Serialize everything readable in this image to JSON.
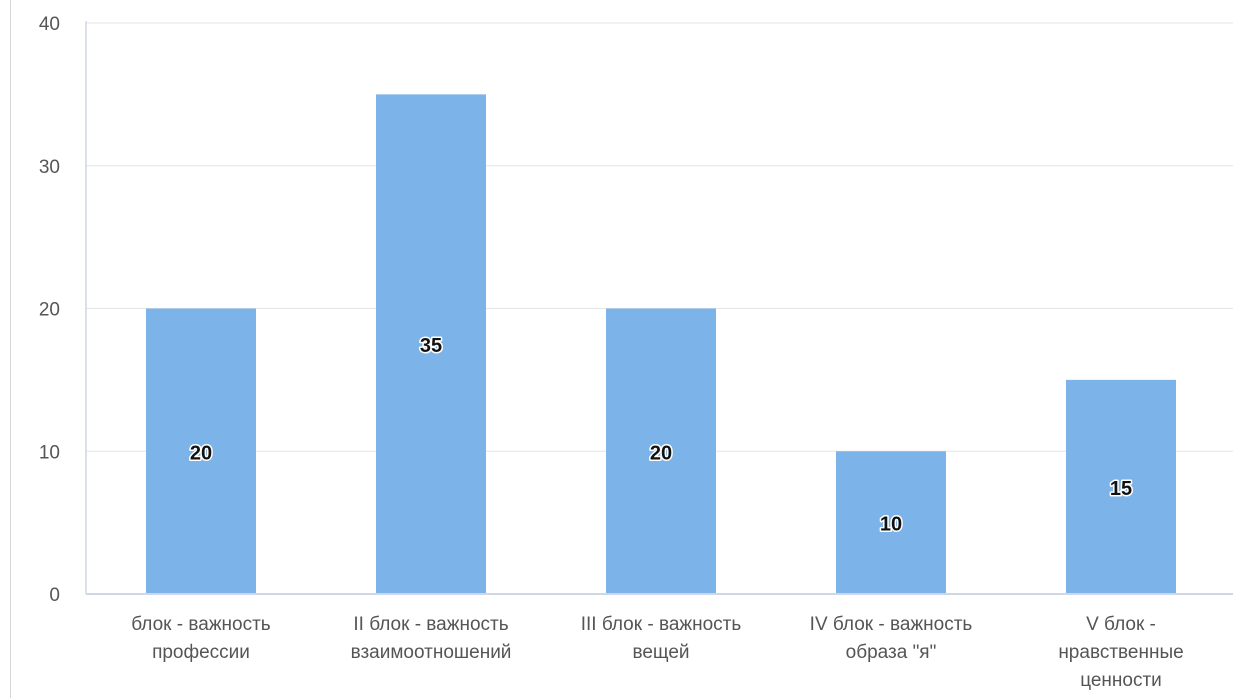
{
  "chart_data": {
    "type": "bar",
    "categories": [
      "блок - важность профессии",
      "II блок - важность взаимоотношений",
      "III блок - важность вещей",
      "IV блок - важность образа \"я\"",
      "V блок - нравственные ценности"
    ],
    "category_lines": [
      [
        "блок - важность",
        "профессии"
      ],
      [
        "II блок - важность",
        "взаимоотношений"
      ],
      [
        "III блок - важность",
        "вещей"
      ],
      [
        "IV блок - важность",
        "образа \"я\""
      ],
      [
        "V блок -",
        "нравственные",
        "ценности"
      ]
    ],
    "values": [
      20,
      35,
      20,
      10,
      15
    ],
    "value_labels": [
      "20",
      "35",
      "20",
      "10",
      "15"
    ],
    "ylim": [
      0,
      40
    ],
    "yticks": [
      0,
      10,
      20,
      30,
      40
    ],
    "ytick_labels": [
      "0",
      "10",
      "20",
      "30",
      "40"
    ],
    "grid": true,
    "legend": "none",
    "colors": {
      "bar": "#7cb3e8",
      "grid": "#e6e6e6",
      "axis": "#cfd6e6",
      "tick_text": "#555555",
      "label_text": "#111111",
      "label_outline": "#ffffff"
    }
  }
}
